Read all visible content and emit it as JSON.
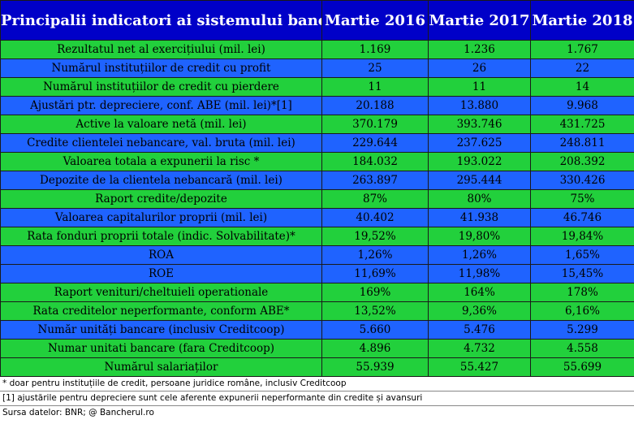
{
  "header": {
    "title": "Principalii indicatori ai sistemului bancar",
    "columns": [
      "Martie 2016",
      "Martie 2017",
      "Martie 2018"
    ]
  },
  "colors": {
    "header": "#0000c8",
    "row_green": "#22d03c",
    "row_blue": "#1f63ff"
  },
  "rows": [
    {
      "label": "Rezultatul net al exercițiului (mil. lei)",
      "values": [
        "1.169",
        "1.236",
        "1.767"
      ],
      "color": "green"
    },
    {
      "label": "Numărul instituțiilor de credit cu profit",
      "values": [
        "25",
        "26",
        "22"
      ],
      "color": "blue"
    },
    {
      "label": "Numărul instituțiilor de credit cu pierdere",
      "values": [
        "11",
        "11",
        "14"
      ],
      "color": "green"
    },
    {
      "label": "Ajustări ptr. depreciere, conf. ABE (mil. lei)*[1]",
      "values": [
        "20.188",
        "13.880",
        "9.968"
      ],
      "color": "blue"
    },
    {
      "label": "Active la valoare netă (mil. lei)",
      "values": [
        "370.179",
        "393.746",
        "431.725"
      ],
      "color": "green"
    },
    {
      "label": "Credite clientelei nebancare, val. bruta (mil. lei)",
      "values": [
        "229.644",
        "237.625",
        "248.811"
      ],
      "color": "blue"
    },
    {
      "label": "Valoarea totala a expunerii la risc *",
      "values": [
        "184.032",
        "193.022",
        "208.392"
      ],
      "color": "green"
    },
    {
      "label": "Depozite de la clientela nebancară (mil. lei)",
      "values": [
        "263.897",
        "295.444",
        "330.426"
      ],
      "color": "blue"
    },
    {
      "label": "Raport credite/depozite",
      "values": [
        "87%",
        "80%",
        "75%"
      ],
      "color": "green"
    },
    {
      "label": "Valoarea capitalurilor proprii  (mil. lei)",
      "values": [
        "40.402",
        "41.938",
        "46.746"
      ],
      "color": "blue"
    },
    {
      "label": "Rata fonduri proprii totale (indic. Solvabilitate)*",
      "values": [
        "19,52%",
        "19,80%",
        "19,84%"
      ],
      "color": "green"
    },
    {
      "label": "ROA",
      "values": [
        "1,26%",
        "1,26%",
        "1,65%"
      ],
      "color": "blue"
    },
    {
      "label": "ROE",
      "values": [
        "11,69%",
        "11,98%",
        "15,45%"
      ],
      "color": "blue"
    },
    {
      "label": "Raport venituri/cheltuieli operationale",
      "values": [
        "169%",
        "164%",
        "178%"
      ],
      "color": "green"
    },
    {
      "label": "Rata creditelor neperformante, conform ABE*",
      "values": [
        "13,52%",
        "9,36%",
        "6,16%"
      ],
      "color": "green"
    },
    {
      "label": "Număr unități bancare (inclusiv Creditcoop)",
      "values": [
        "5.660",
        "5.476",
        "5.299"
      ],
      "color": "blue"
    },
    {
      "label": "Numar unitati bancare (fara Creditcoop)",
      "values": [
        "4.896",
        "4.732",
        "4.558"
      ],
      "color": "green"
    },
    {
      "label": "Numărul salariaților",
      "values": [
        "55.939",
        "55.427",
        "55.699"
      ],
      "color": "green"
    }
  ],
  "notes": [
    "* doar pentru instituțiile de credit, persoane juridice române, inclusiv Creditcoop",
    "[1]  ajustările pentru depreciere sunt cele aferente expunerii neperformante din credite și avansuri",
    "Sursa datelor: BNR; @ Bancherul.ro"
  ]
}
